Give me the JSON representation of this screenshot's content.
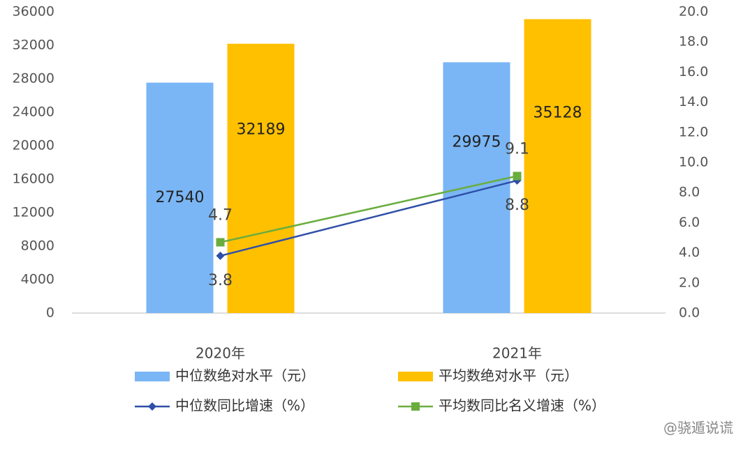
{
  "chart_data": {
    "type": "combo",
    "categories": [
      "2020年",
      "2021年"
    ],
    "series": [
      {
        "name": "中位数绝对水平（元）",
        "type": "bar",
        "color": "#7ab6f5",
        "values": [
          27540,
          29975
        ]
      },
      {
        "name": "平均数绝对水平（元）",
        "type": "bar",
        "color": "#ffc000",
        "values": [
          32189,
          35128
        ]
      },
      {
        "name": "中位数同比增速（%）",
        "type": "line",
        "axis": "y2",
        "marker": "diamond",
        "label_side": "below",
        "color": "#2e4fa8",
        "values": [
          3.8,
          8.8
        ]
      },
      {
        "name": "平均数同比名义增速（%）",
        "type": "line",
        "axis": "y2",
        "marker": "square",
        "label_side": "above",
        "color": "#6aad3e",
        "values": [
          4.7,
          9.1
        ]
      }
    ],
    "ylim": [
      0,
      36000
    ],
    "yticks": [
      0,
      4000,
      8000,
      12000,
      16000,
      20000,
      24000,
      28000,
      32000,
      36000
    ],
    "y2lim": [
      0,
      20
    ],
    "y2ticks": [
      {
        "value": 0,
        "label": "0.0"
      },
      {
        "value": 2,
        "label": "2.0"
      },
      {
        "value": 4,
        "label": "4.0"
      },
      {
        "value": 6,
        "label": "6.0"
      },
      {
        "value": 8,
        "label": "8.0"
      },
      {
        "value": 10,
        "label": "10.0"
      },
      {
        "value": 12,
        "label": "12.0"
      },
      {
        "value": 14,
        "label": "14.0"
      },
      {
        "value": 16,
        "label": "16.0"
      },
      {
        "value": 18,
        "label": "18.0"
      },
      {
        "value": 20,
        "label": "20.0"
      }
    ],
    "watermark": "@骁遁说谎"
  }
}
